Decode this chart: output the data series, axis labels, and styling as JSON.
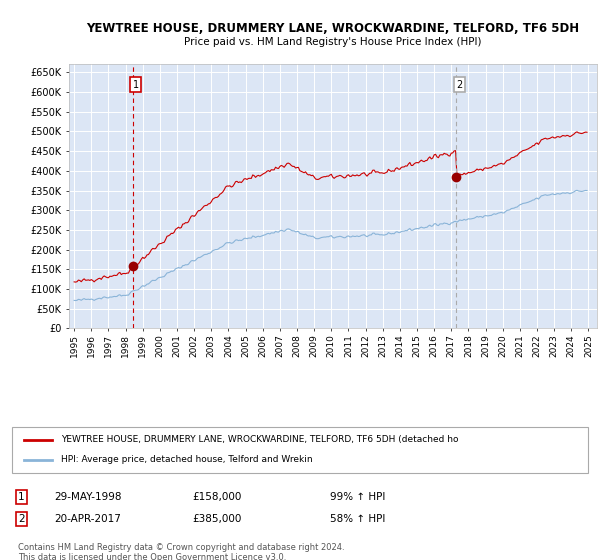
{
  "title1": "YEWTREE HOUSE, DRUMMERY LANE, WROCKWARDINE, TELFORD, TF6 5DH",
  "title2": "Price paid vs. HM Land Registry's House Price Index (HPI)",
  "plot_bg_color": "#dce6f5",
  "ylim": [
    0,
    670000
  ],
  "yticks": [
    0,
    50000,
    100000,
    150000,
    200000,
    250000,
    300000,
    350000,
    400000,
    450000,
    500000,
    550000,
    600000,
    650000
  ],
  "ytick_labels": [
    "£0",
    "£50K",
    "£100K",
    "£150K",
    "£200K",
    "£250K",
    "£300K",
    "£350K",
    "£400K",
    "£450K",
    "£500K",
    "£550K",
    "£600K",
    "£650K"
  ],
  "sale1_date": 1998.41,
  "sale1_price": 158000,
  "sale2_date": 2017.3,
  "sale2_price": 385000,
  "legend_label_red": "YEWTREE HOUSE, DRUMMERY LANE, WROCKWARDINE, TELFORD, TF6 5DH (detached ho",
  "legend_label_blue": "HPI: Average price, detached house, Telford and Wrekin",
  "note1_label": "1",
  "note1_date": "29-MAY-1998",
  "note1_price": "£158,000",
  "note1_hpi": "99% ↑ HPI",
  "note2_label": "2",
  "note2_date": "20-APR-2017",
  "note2_price": "£385,000",
  "note2_hpi": "58% ↑ HPI",
  "footer": "Contains HM Land Registry data © Crown copyright and database right 2024.\nThis data is licensed under the Open Government Licence v3.0."
}
